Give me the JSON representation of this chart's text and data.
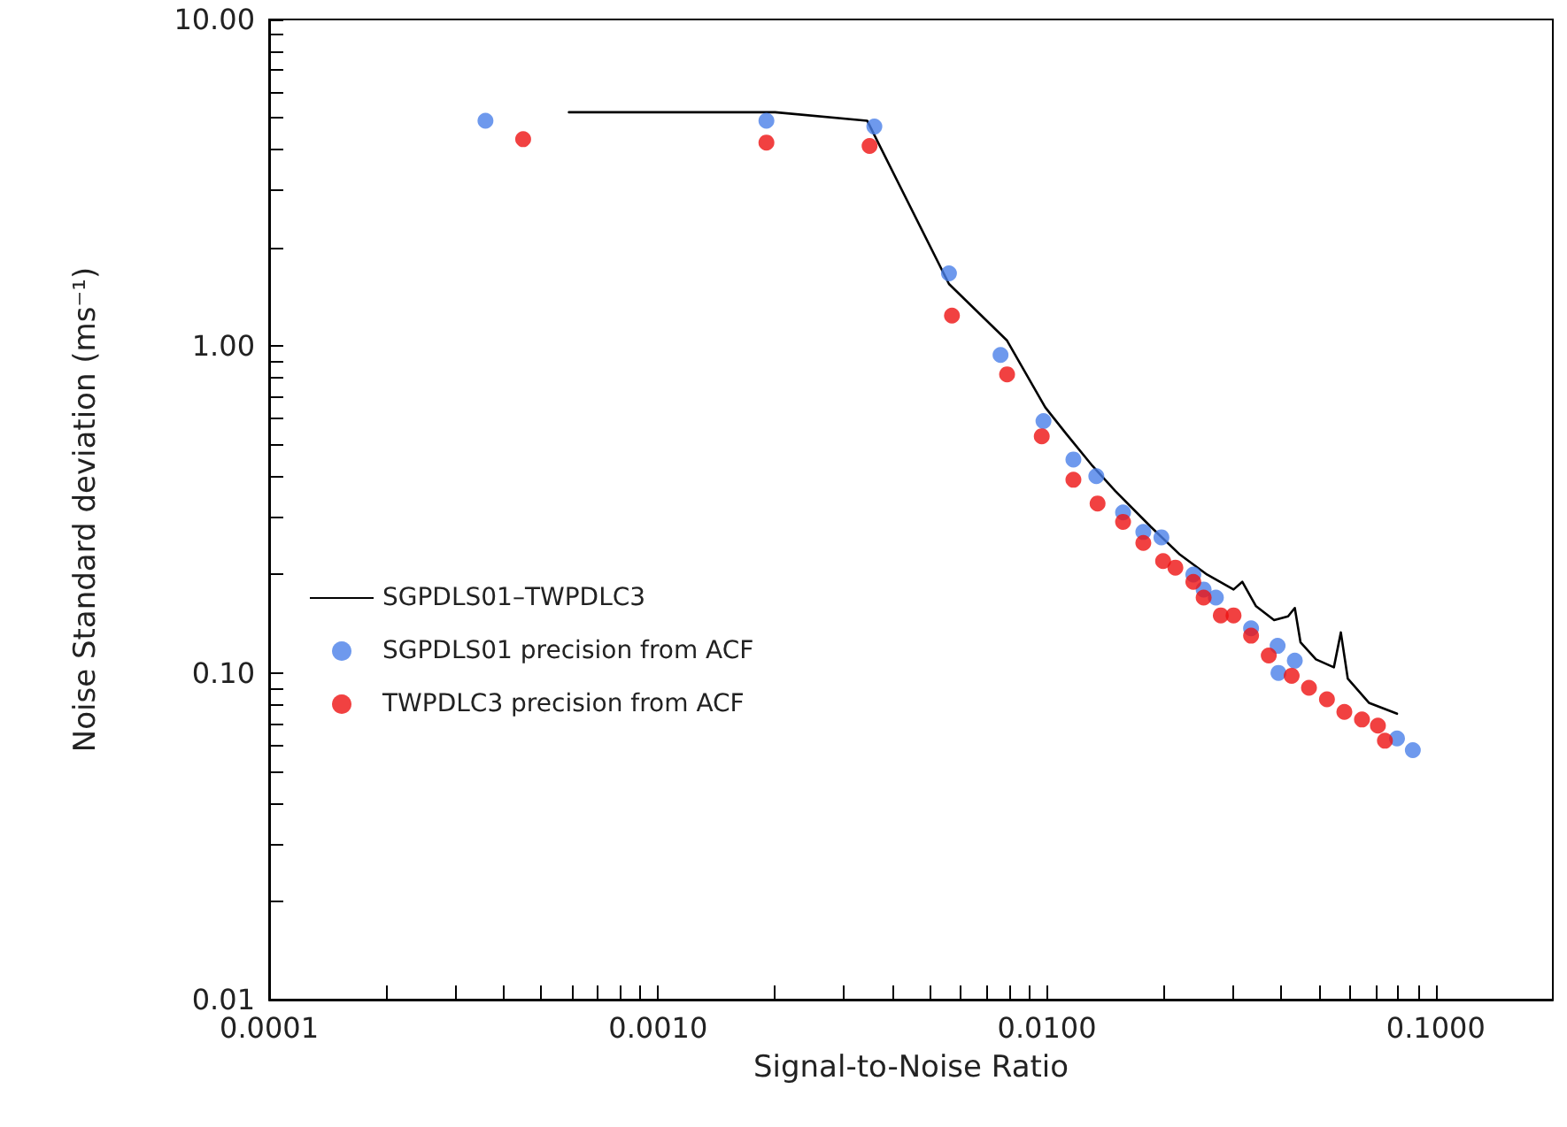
{
  "chart_data": {
    "type": "scatter",
    "xlabel": "Signal-to-Noise Ratio",
    "ylabel": "Noise Standard deviation (ms⁻¹)",
    "log": "xy",
    "grid": false,
    "legend": "left",
    "xlim": [
      0.0001,
      0.2
    ],
    "ylim": [
      0.01,
      10
    ],
    "xticks": [
      {
        "value": 0.0001,
        "label": "0.0001"
      },
      {
        "value": 0.0002,
        "label": null
      },
      {
        "value": 0.0003,
        "label": null
      },
      {
        "value": 0.0004,
        "label": null
      },
      {
        "value": 0.0005,
        "label": null
      },
      {
        "value": 0.0006,
        "label": null
      },
      {
        "value": 0.0007,
        "label": null
      },
      {
        "value": 0.0008,
        "label": null
      },
      {
        "value": 0.0009,
        "label": null
      },
      {
        "value": 0.001,
        "label": "0.0010"
      },
      {
        "value": 0.002,
        "label": null
      },
      {
        "value": 0.003,
        "label": null
      },
      {
        "value": 0.004,
        "label": null
      },
      {
        "value": 0.005,
        "label": null
      },
      {
        "value": 0.006,
        "label": null
      },
      {
        "value": 0.007,
        "label": null
      },
      {
        "value": 0.008,
        "label": null
      },
      {
        "value": 0.009,
        "label": null
      },
      {
        "value": 0.01,
        "label": "0.0100"
      },
      {
        "value": 0.02,
        "label": null
      },
      {
        "value": 0.03,
        "label": null
      },
      {
        "value": 0.04,
        "label": null
      },
      {
        "value": 0.05,
        "label": null
      },
      {
        "value": 0.06,
        "label": null
      },
      {
        "value": 0.07,
        "label": null
      },
      {
        "value": 0.08,
        "label": null
      },
      {
        "value": 0.09,
        "label": null
      },
      {
        "value": 0.1,
        "label": "0.1000"
      }
    ],
    "yticks": [
      {
        "value": 0.01,
        "label": "0.01"
      },
      {
        "value": 0.02,
        "label": null
      },
      {
        "value": 0.03,
        "label": null
      },
      {
        "value": 0.04,
        "label": null
      },
      {
        "value": 0.05,
        "label": null
      },
      {
        "value": 0.06,
        "label": null
      },
      {
        "value": 0.07,
        "label": null
      },
      {
        "value": 0.08,
        "label": null
      },
      {
        "value": 0.09,
        "label": null
      },
      {
        "value": 0.1,
        "label": "0.10"
      },
      {
        "value": 0.2,
        "label": null
      },
      {
        "value": 0.3,
        "label": null
      },
      {
        "value": 0.4,
        "label": null
      },
      {
        "value": 0.5,
        "label": null
      },
      {
        "value": 0.6,
        "label": null
      },
      {
        "value": 0.7,
        "label": null
      },
      {
        "value": 0.8,
        "label": null
      },
      {
        "value": 0.9,
        "label": null
      },
      {
        "value": 1,
        "label": "1.00"
      },
      {
        "value": 2,
        "label": null
      },
      {
        "value": 3,
        "label": null
      },
      {
        "value": 4,
        "label": null
      },
      {
        "value": 5,
        "label": null
      },
      {
        "value": 6,
        "label": null
      },
      {
        "value": 7,
        "label": null
      },
      {
        "value": 8,
        "label": null
      },
      {
        "value": 9,
        "label": null
      },
      {
        "value": 10,
        "label": "10.00"
      }
    ],
    "series": [
      {
        "name": "SGPDLS01–TWPDLC3",
        "type": "line",
        "color": "#000000",
        "marker": "none",
        "line_style": "solid",
        "x": [
          0.00059,
          0.002,
          0.00345,
          0.0056,
          0.0079,
          0.0099,
          0.0112,
          0.0131,
          0.015,
          0.0185,
          0.022,
          0.0258,
          0.0302,
          0.0318,
          0.0345,
          0.0384,
          0.0417,
          0.0434,
          0.0449,
          0.0492,
          0.0547,
          0.057,
          0.0594,
          0.0673,
          0.0795
        ],
        "values": [
          5.2,
          5.2,
          4.9,
          1.55,
          1.04,
          0.65,
          0.54,
          0.43,
          0.36,
          0.28,
          0.23,
          0.2,
          0.18,
          0.19,
          0.16,
          0.145,
          0.149,
          0.158,
          0.124,
          0.11,
          0.104,
          0.133,
          0.096,
          0.081,
          0.075
        ]
      },
      {
        "name": "SGPDLS01 precision from ACF",
        "color": "#4a7fe8",
        "marker": "circle",
        "x": [
          0.00036,
          0.0019,
          0.0036,
          0.0056,
          0.0076,
          0.0098,
          0.0117,
          0.0134,
          0.0157,
          0.0177,
          0.0197,
          0.0214,
          0.0238,
          0.0253,
          0.0272,
          0.0302,
          0.0335,
          0.0392,
          0.0394,
          0.0434,
          0.068,
          0.0795,
          0.0873
        ],
        "values": [
          4.9,
          4.9,
          4.7,
          1.67,
          0.94,
          0.59,
          0.45,
          0.4,
          0.31,
          0.27,
          0.26,
          null,
          0.2,
          0.18,
          0.17,
          null,
          0.137,
          0.121,
          0.1,
          0.109,
          null,
          0.063,
          0.058
        ]
      },
      {
        "name": "TWPDLC3 precision from ACF",
        "color": "#ee1111",
        "marker": "circle",
        "x": [
          0.00045,
          0.0019,
          0.0035,
          0.0057,
          0.0079,
          0.0097,
          0.0117,
          0.0135,
          0.0157,
          0.0177,
          0.0199,
          0.0214,
          0.0238,
          0.0253,
          0.028,
          0.0302,
          0.0335,
          0.0372,
          0.0426,
          0.0472,
          0.0525,
          0.0582,
          0.0646,
          0.071,
          0.074
        ],
        "values": [
          4.3,
          4.2,
          4.1,
          1.24,
          0.82,
          0.53,
          0.39,
          0.33,
          0.29,
          0.25,
          0.22,
          0.21,
          0.19,
          0.17,
          0.15,
          0.15,
          0.13,
          0.113,
          0.098,
          0.09,
          0.083,
          0.076,
          0.072,
          0.069,
          0.062
        ]
      }
    ]
  }
}
